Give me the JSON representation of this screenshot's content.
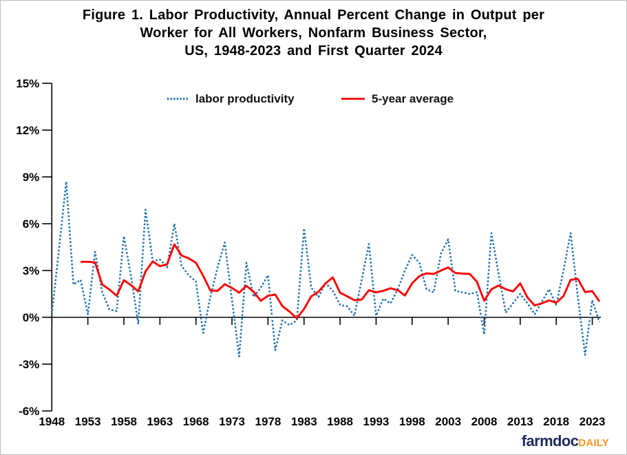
{
  "figure": {
    "title_lines": [
      "Figure 1. Labor Productivity, Annual Percent Change in Output per",
      "Worker for All Workers, Nonfarm Business Sector,",
      "US, 1948-2023 and First Quarter 2024"
    ]
  },
  "legend": {
    "items": [
      {
        "label": "labor productivity",
        "color": "#2274B5",
        "style": "dotted"
      },
      {
        "label": "5-year average",
        "color": "#FE0000",
        "style": "solid"
      }
    ]
  },
  "chart_data": {
    "type": "line",
    "title": "Figure 1. Labor Productivity, Annual Percent Change in Output per Worker for All Workers, Nonfarm Business Sector, US, 1948-2023 and First Quarter 2024",
    "xlabel": "",
    "ylabel": "",
    "ylim": [
      -6,
      15
    ],
    "xlim": [
      1948,
      2024
    ],
    "grid": false,
    "legend_position": "top-center",
    "y_axis": {
      "tick_values": [
        15,
        12,
        9,
        6,
        3,
        0,
        -3,
        -6
      ],
      "tick_labels": [
        "15%",
        "12%",
        "9%",
        "6%",
        "3%",
        "0%",
        "-3%",
        "-6%"
      ]
    },
    "x_axis": {
      "tick_years": [
        1948,
        1953,
        1958,
        1963,
        1968,
        1973,
        1978,
        1983,
        1988,
        1993,
        1998,
        2003,
        2008,
        2013,
        2018,
        2023
      ],
      "tick_labels": [
        "1948",
        "1953",
        "1958",
        "1963",
        "1968",
        "1973",
        "1978",
        "1983",
        "1988",
        "1993",
        "1998",
        "2003",
        "2008",
        "2013",
        "2018",
        "2023"
      ]
    },
    "series": [
      {
        "name": "labor productivity",
        "style": "dotted",
        "color": "#2274B5",
        "start_year": 1948,
        "last_point": "2024 Q1",
        "values": [
          0.2,
          4.4,
          8.7,
          2.1,
          2.4,
          0.2,
          4.2,
          1.6,
          0.5,
          0.4,
          5.2,
          2.6,
          -0.4,
          6.9,
          3.6,
          3.7,
          3.2,
          6.0,
          3.3,
          2.7,
          2.3,
          -1.0,
          1.3,
          3.2,
          4.8,
          1.1,
          -2.5,
          3.5,
          1.3,
          1.9,
          2.7,
          -2.1,
          -0.2,
          -0.5,
          -0.2,
          5.7,
          1.9,
          1.3,
          2.2,
          1.7,
          0.8,
          0.7,
          0.1,
          2.4,
          4.7,
          0.1,
          1.2,
          0.9,
          1.8,
          3.0,
          4.0,
          3.5,
          1.8,
          1.6,
          4.1,
          5.0,
          1.7,
          1.6,
          1.5,
          1.6,
          -1.1,
          5.4,
          2.8,
          0.3,
          0.9,
          1.5,
          0.9,
          0.2,
          1.0,
          1.8,
          0.8,
          3.0,
          5.4,
          1.3,
          -2.4,
          1.1,
          -0.3
        ]
      },
      {
        "name": "5-year average",
        "style": "solid",
        "color": "#FE0000",
        "start_year": 1952,
        "values": [
          3.56,
          3.56,
          3.52,
          2.1,
          1.78,
          1.38,
          2.38,
          2.06,
          1.66,
          2.94,
          3.58,
          3.28,
          3.4,
          4.68,
          3.96,
          3.78,
          3.5,
          2.66,
          1.72,
          1.7,
          2.12,
          1.88,
          1.58,
          2.02,
          1.64,
          1.06,
          1.38,
          1.46,
          0.72,
          0.36,
          -0.06,
          0.54,
          1.34,
          1.64,
          2.18,
          2.56,
          1.58,
          1.34,
          1.1,
          1.14,
          1.74,
          1.6,
          1.7,
          1.86,
          1.74,
          1.4,
          2.18,
          2.64,
          2.82,
          2.78,
          3.0,
          3.2,
          2.84,
          2.8,
          2.78,
          2.28,
          1.06,
          1.8,
          2.04,
          1.8,
          1.66,
          2.18,
          1.28,
          0.76,
          0.9,
          1.08,
          0.94,
          1.36,
          2.4,
          2.46,
          1.62,
          1.68,
          1.02
        ]
      }
    ]
  },
  "branding": {
    "name": "farmdoc",
    "suffix": "DAILY",
    "name_color": "#1F2A5C",
    "suffix_color": "#F7941E"
  }
}
